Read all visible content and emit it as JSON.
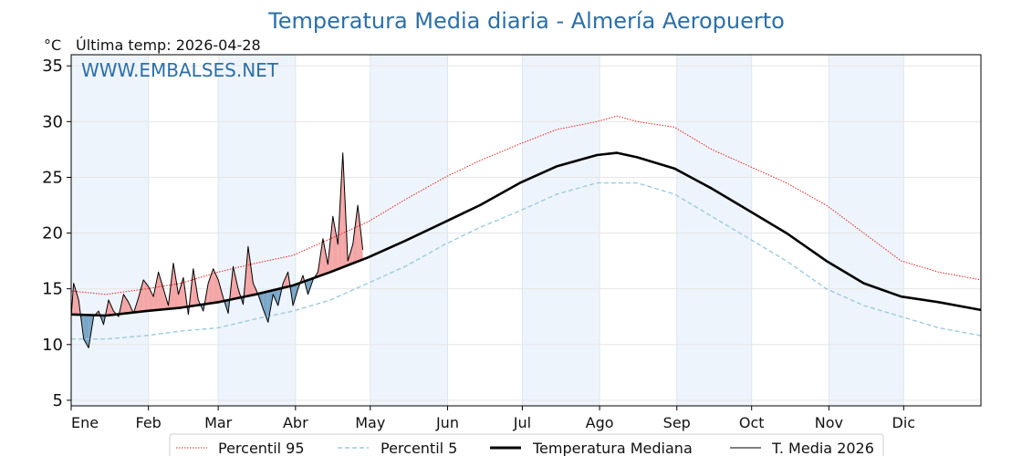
{
  "chart_data": {
    "type": "line",
    "title": "Temperatura Media diaria - Almería Aeropuerto",
    "unit_label": "°C",
    "last_temp_label": "Última temp: 2026-04-28",
    "watermark": "WWW.EMBALSES.NET",
    "ylim": [
      4.5,
      36
    ],
    "yticks": [
      5,
      10,
      15,
      20,
      25,
      30,
      35
    ],
    "xlim": [
      1,
      366
    ],
    "months": [
      "Ene",
      "Feb",
      "Mar",
      "Abr",
      "May",
      "Jun",
      "Jul",
      "Ago",
      "Sep",
      "Oct",
      "Nov",
      "Dic"
    ],
    "month_start_days": [
      1,
      32,
      60,
      91,
      121,
      152,
      182,
      213,
      244,
      274,
      305,
      335
    ],
    "grid": true,
    "legend_position": "bottom",
    "colors": {
      "p95": "#e02020",
      "p5": "#9ccbe0",
      "median": "#000000",
      "current": "#000000",
      "above": "#f4a6a6",
      "below": "#7aa6c8",
      "shade": "#eef4fb",
      "title": "#2b6fa8"
    },
    "series": [
      {
        "name": "Percentil 95",
        "style": "dotted-red",
        "x": [
          1,
          15,
          31,
          45,
          60,
          75,
          90,
          105,
          120,
          135,
          151,
          165,
          181,
          196,
          212,
          220,
          228,
          243,
          258,
          273,
          288,
          304,
          319,
          334,
          349,
          366
        ],
        "values": [
          14.8,
          14.5,
          15.0,
          15.5,
          16.5,
          17.3,
          18.0,
          19.5,
          21.0,
          23.0,
          25.0,
          26.5,
          28.0,
          29.3,
          30.0,
          30.5,
          30.0,
          29.5,
          27.5,
          26.0,
          24.5,
          22.5,
          20.0,
          17.5,
          16.5,
          15.8
        ]
      },
      {
        "name": "Percentil 5",
        "style": "dashed-lightblue",
        "x": [
          1,
          15,
          31,
          45,
          60,
          75,
          90,
          105,
          120,
          135,
          151,
          165,
          181,
          196,
          212,
          228,
          243,
          258,
          273,
          288,
          304,
          319,
          334,
          349,
          366
        ],
        "values": [
          10.5,
          10.5,
          10.8,
          11.2,
          11.5,
          12.3,
          13.0,
          14.0,
          15.5,
          17.0,
          19.0,
          20.5,
          22.0,
          23.5,
          24.5,
          24.5,
          23.5,
          21.5,
          19.5,
          17.5,
          15.0,
          13.5,
          12.5,
          11.5,
          10.8
        ]
      },
      {
        "name": "Temperatura Mediana",
        "style": "thick-black",
        "x": [
          1,
          15,
          31,
          45,
          60,
          75,
          90,
          105,
          120,
          135,
          151,
          165,
          181,
          196,
          212,
          220,
          228,
          243,
          258,
          273,
          288,
          304,
          319,
          334,
          349,
          366
        ],
        "values": [
          12.7,
          12.6,
          13.0,
          13.3,
          13.8,
          14.5,
          15.3,
          16.5,
          17.8,
          19.3,
          21.0,
          22.5,
          24.5,
          26.0,
          27.0,
          27.2,
          26.8,
          25.8,
          24.0,
          22.0,
          20.0,
          17.5,
          15.5,
          14.3,
          13.8,
          13.1
        ]
      },
      {
        "name": "T. Media 2026",
        "style": "thin-black",
        "x": [
          1,
          2,
          4,
          6,
          8,
          10,
          12,
          14,
          16,
          18,
          20,
          22,
          24,
          26,
          28,
          30,
          32,
          34,
          36,
          38,
          40,
          42,
          44,
          46,
          48,
          50,
          52,
          54,
          56,
          58,
          60,
          62,
          64,
          66,
          68,
          70,
          72,
          74,
          76,
          78,
          80,
          82,
          84,
          86,
          88,
          90,
          92,
          94,
          96,
          98,
          100,
          102,
          104,
          106,
          108,
          110,
          112,
          114,
          116,
          118
        ],
        "values": [
          12.5,
          15.5,
          14.0,
          10.5,
          9.7,
          12.5,
          13.0,
          11.8,
          14.0,
          13.0,
          12.5,
          14.5,
          13.8,
          12.8,
          14.2,
          15.8,
          15.2,
          14.3,
          16.5,
          15.0,
          13.5,
          17.3,
          14.5,
          16.0,
          12.7,
          16.8,
          14.0,
          13.0,
          15.5,
          16.8,
          15.8,
          14.2,
          12.8,
          17.0,
          15.0,
          13.6,
          18.8,
          15.5,
          14.5,
          13.2,
          12.0,
          14.5,
          13.5,
          15.5,
          16.5,
          13.5,
          15.0,
          16.2,
          14.5,
          15.8,
          16.5,
          19.5,
          17.2,
          21.5,
          19.0,
          27.2,
          17.5,
          19.0,
          22.5,
          18.5
        ]
      }
    ]
  }
}
